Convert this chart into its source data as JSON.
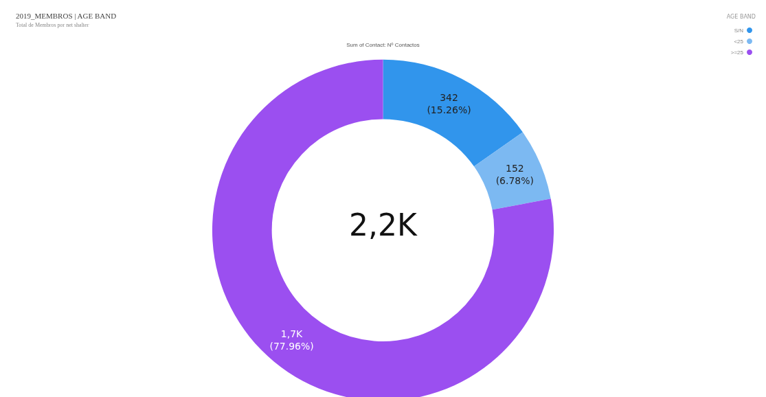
{
  "chart_data": {
    "type": "donut",
    "title": "2019_MEMBROS | AGE BAND",
    "subtitle": "Total de Membros por net shalter",
    "legend_title": "AGE BAND",
    "legend": "top right",
    "categories": [
      "S/N",
      "<25",
      ">=25"
    ],
    "values": [
      342,
      152,
      1747
    ],
    "colors": [
      "#3195ec",
      "#7cb9f2",
      "#9b4ff0"
    ],
    "value_labels": [
      "342\n(15.26%)",
      "152\n(6.78%)",
      "1,7K\n(77.96%)"
    ],
    "annotations": [
      "Sum of Contact: Nº Contactos",
      "2,2K"
    ]
  }
}
